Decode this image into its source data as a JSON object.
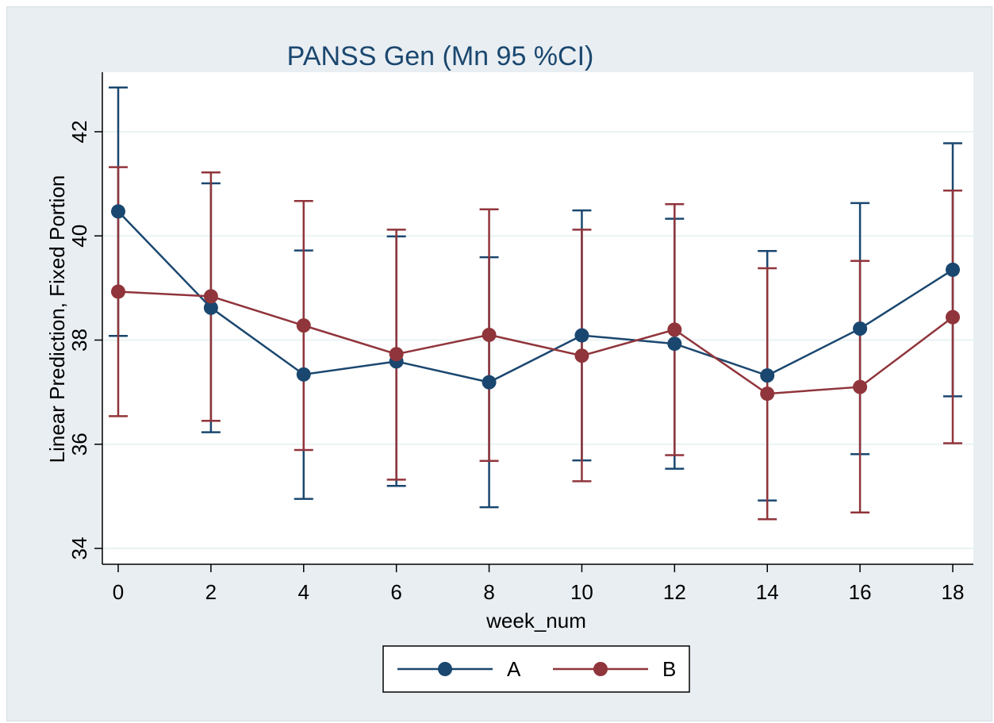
{
  "chart_data": {
    "type": "line",
    "title": "PANSS Gen (Mn 95 %CI)",
    "xlabel": "week_num",
    "ylabel": "Linear Prediction, Fixed Portion",
    "x": [
      0,
      2,
      4,
      6,
      8,
      10,
      12,
      14,
      16,
      18
    ],
    "xticks": [
      "0",
      "2",
      "4",
      "6",
      "8",
      "10",
      "12",
      "14",
      "16",
      "18"
    ],
    "yticks": [
      "34",
      "36",
      "38",
      "40",
      "42"
    ],
    "xlim": [
      0,
      18
    ],
    "ylim": [
      34,
      43
    ],
    "grid": true,
    "legend_position": "bottom",
    "series": [
      {
        "name": "A",
        "color": "#1a476f",
        "values": [
          40.47,
          38.62,
          37.34,
          37.59,
          37.19,
          38.09,
          37.93,
          37.32,
          38.22,
          39.35
        ],
        "ci_low": [
          38.08,
          36.23,
          34.95,
          35.2,
          34.79,
          35.69,
          35.53,
          34.92,
          35.81,
          36.92
        ],
        "ci_high": [
          42.85,
          41.01,
          39.72,
          39.99,
          39.59,
          40.49,
          40.33,
          39.71,
          40.63,
          41.78
        ]
      },
      {
        "name": "B",
        "color": "#90353b",
        "values": [
          38.93,
          38.84,
          38.28,
          37.73,
          38.1,
          37.7,
          38.2,
          36.97,
          37.1,
          38.44
        ],
        "ci_low": [
          36.54,
          36.45,
          35.89,
          35.32,
          35.68,
          35.29,
          35.79,
          34.56,
          34.69,
          36.02
        ],
        "ci_high": [
          41.32,
          41.22,
          40.67,
          40.12,
          40.51,
          40.12,
          40.61,
          39.38,
          39.52,
          40.87
        ]
      }
    ]
  }
}
